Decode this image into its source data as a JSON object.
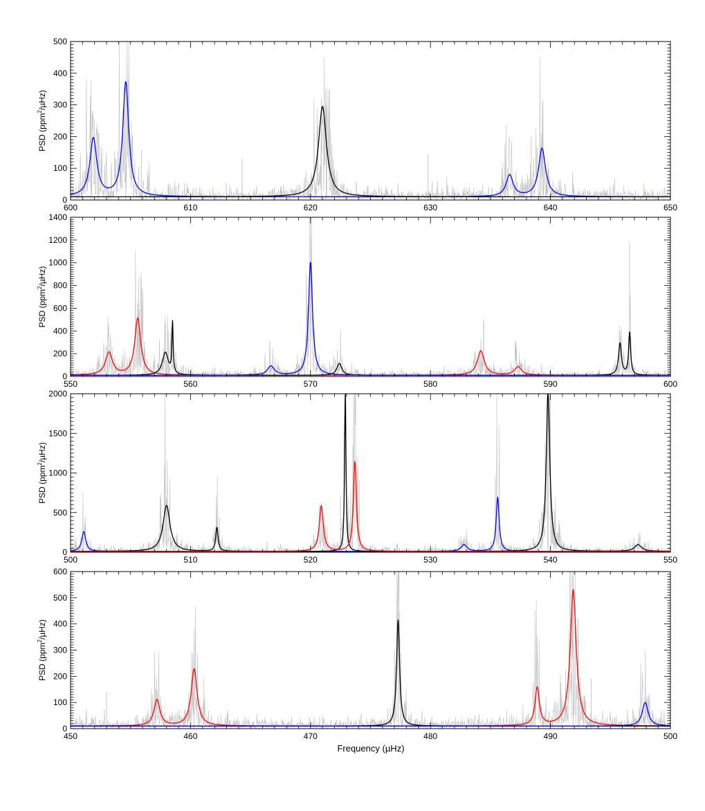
{
  "figure": {
    "xlabel": "Frequency (µHz)",
    "ylabel_prefix": "PSD (ppm",
    "ylabel_exp": "2",
    "ylabel_suffix": "/µHz)"
  },
  "colors": {
    "spectrum": "#c0c0c0",
    "black": "#000000",
    "blue": "#0000ff",
    "red": "#ff0000"
  },
  "chart_data": [
    {
      "type": "line",
      "panel": 1,
      "xlim": [
        600,
        650
      ],
      "ylim": [
        0,
        500
      ],
      "xticks": [
        600,
        610,
        620,
        630,
        640,
        650
      ],
      "yticks": [
        0,
        100,
        200,
        300,
        400,
        500
      ],
      "baseline": 10,
      "noise_level": 25,
      "series": [
        {
          "color": "blue",
          "modes": [
            {
              "freq": 601.9,
              "height": 183,
              "width": 0.35
            },
            {
              "freq": 604.6,
              "height": 360,
              "width": 0.3
            },
            {
              "freq": 636.6,
              "height": 68,
              "width": 0.35
            },
            {
              "freq": 639.3,
              "height": 152,
              "width": 0.35
            }
          ]
        },
        {
          "color": "black",
          "modes": [
            {
              "freq": 621.0,
              "height": 285,
              "width": 0.4
            }
          ]
        }
      ],
      "spikes": [
        {
          "freq": 601.7,
          "height": 250
        },
        {
          "freq": 602.3,
          "height": 210
        },
        {
          "freq": 604.6,
          "height": 355
        },
        {
          "freq": 605.9,
          "height": 160
        },
        {
          "freq": 614.3,
          "height": 130
        },
        {
          "freq": 620.9,
          "height": 320
        },
        {
          "freq": 621.3,
          "height": 270
        },
        {
          "freq": 629.8,
          "height": 145
        },
        {
          "freq": 638.4,
          "height": 200
        },
        {
          "freq": 639.2,
          "height": 170
        }
      ]
    },
    {
      "type": "line",
      "panel": 2,
      "xlim": [
        550,
        600
      ],
      "ylim": [
        0,
        1400
      ],
      "xticks": [
        550,
        560,
        570,
        580,
        590,
        600
      ],
      "yticks": [
        0,
        200,
        400,
        600,
        800,
        1000,
        1200,
        1400
      ],
      "baseline": 10,
      "noise_level": 50,
      "series": [
        {
          "color": "red",
          "modes": [
            {
              "freq": 553.2,
              "height": 200,
              "width": 0.35
            },
            {
              "freq": 555.6,
              "height": 500,
              "width": 0.3
            },
            {
              "freq": 584.2,
              "height": 215,
              "width": 0.35
            },
            {
              "freq": 587.3,
              "height": 75,
              "width": 0.35
            }
          ]
        },
        {
          "color": "black",
          "modes": [
            {
              "freq": 557.9,
              "height": 200,
              "width": 0.3
            },
            {
              "freq": 558.5,
              "height": 445,
              "width": 0.06
            },
            {
              "freq": 572.4,
              "height": 105,
              "width": 0.25
            },
            {
              "freq": 595.8,
              "height": 280,
              "width": 0.15
            },
            {
              "freq": 596.6,
              "height": 375,
              "width": 0.1
            }
          ]
        },
        {
          "color": "blue",
          "modes": [
            {
              "freq": 566.7,
              "height": 80,
              "width": 0.35
            },
            {
              "freq": 570.0,
              "height": 995,
              "width": 0.2
            }
          ]
        }
      ],
      "spikes": [
        {
          "freq": 553.1,
          "height": 350
        },
        {
          "freq": 555.6,
          "height": 640
        },
        {
          "freq": 557.9,
          "height": 470
        },
        {
          "freq": 566.6,
          "height": 310
        },
        {
          "freq": 570.0,
          "height": 1210
        },
        {
          "freq": 584.2,
          "height": 300
        },
        {
          "freq": 596.6,
          "height": 1180
        }
      ]
    },
    {
      "type": "line",
      "panel": 3,
      "xlim": [
        500,
        550
      ],
      "ylim": [
        0,
        2000
      ],
      "xticks": [
        500,
        510,
        520,
        530,
        540,
        550
      ],
      "yticks": [
        0,
        500,
        1000,
        1500,
        2000
      ],
      "baseline": 10,
      "noise_level": 60,
      "series": [
        {
          "color": "blue",
          "modes": [
            {
              "freq": 501.1,
              "height": 250,
              "width": 0.2
            },
            {
              "freq": 532.8,
              "height": 85,
              "width": 0.3
            },
            {
              "freq": 535.6,
              "height": 680,
              "width": 0.15
            }
          ]
        },
        {
          "color": "black",
          "modes": [
            {
              "freq": 508.0,
              "height": 580,
              "width": 0.35
            },
            {
              "freq": 512.2,
              "height": 300,
              "width": 0.12
            },
            {
              "freq": 522.9,
              "height": 2000,
              "width": 0.07
            },
            {
              "freq": 539.8,
              "height": 2000,
              "width": 0.18
            },
            {
              "freq": 547.3,
              "height": 85,
              "width": 0.35
            }
          ]
        },
        {
          "color": "red",
          "modes": [
            {
              "freq": 520.9,
              "height": 575,
              "width": 0.2
            },
            {
              "freq": 523.7,
              "height": 1130,
              "width": 0.15
            }
          ]
        }
      ],
      "spikes": [
        {
          "freq": 508.0,
          "height": 680
        },
        {
          "freq": 512.4,
          "height": 430
        },
        {
          "freq": 522.5,
          "height": 700
        },
        {
          "freq": 523.5,
          "height": 620
        },
        {
          "freq": 539.8,
          "height": 1900
        }
      ]
    },
    {
      "type": "line",
      "panel": 4,
      "xlim": [
        450,
        500
      ],
      "ylim": [
        0,
        600
      ],
      "xticks": [
        450,
        460,
        470,
        480,
        490,
        500
      ],
      "yticks": [
        0,
        100,
        200,
        300,
        400,
        500,
        600
      ],
      "baseline": 10,
      "noise_level": 30,
      "series": [
        {
          "color": "red",
          "modes": [
            {
              "freq": 457.2,
              "height": 100,
              "width": 0.3
            },
            {
              "freq": 460.3,
              "height": 218,
              "width": 0.3
            },
            {
              "freq": 488.9,
              "height": 145,
              "width": 0.22
            },
            {
              "freq": 491.9,
              "height": 520,
              "width": 0.3
            }
          ]
        },
        {
          "color": "black",
          "modes": [
            {
              "freq": 477.3,
              "height": 405,
              "width": 0.15
            }
          ]
        },
        {
          "color": "blue",
          "modes": [
            {
              "freq": 497.9,
              "height": 90,
              "width": 0.3
            }
          ]
        }
      ],
      "spikes": [
        {
          "freq": 453.0,
          "height": 140
        },
        {
          "freq": 457.1,
          "height": 150
        },
        {
          "freq": 460.3,
          "height": 250
        },
        {
          "freq": 477.3,
          "height": 580
        },
        {
          "freq": 477.0,
          "height": 300
        },
        {
          "freq": 491.9,
          "height": 585
        },
        {
          "freq": 492.3,
          "height": 420
        },
        {
          "freq": 493.4,
          "height": 190
        },
        {
          "freq": 497.9,
          "height": 120
        }
      ]
    }
  ]
}
